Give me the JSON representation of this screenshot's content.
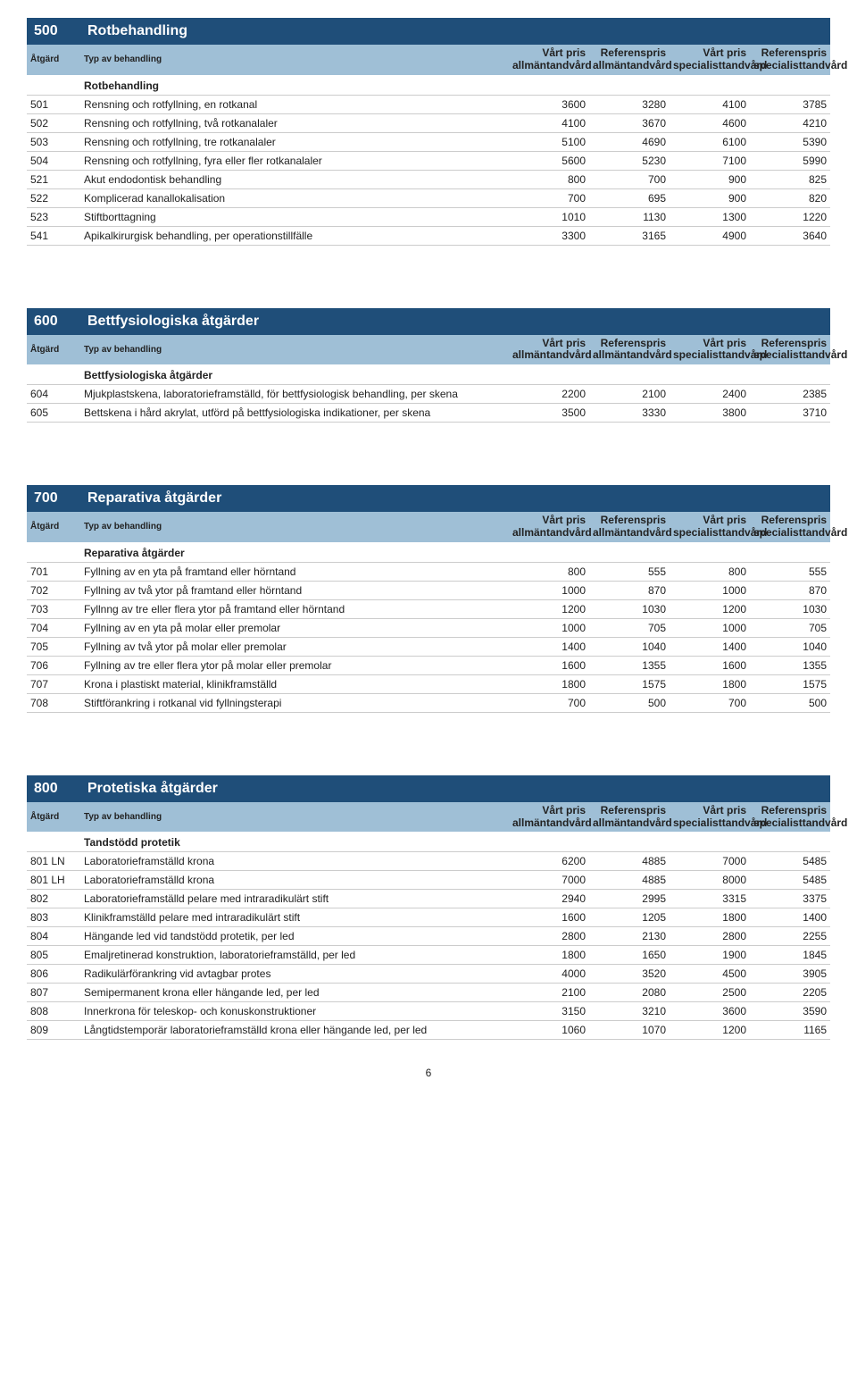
{
  "columns": {
    "atgard": "Åtgärd",
    "typ": "Typ av behandling",
    "c1a": "Vårt pris",
    "c1b": "allmäntandvård",
    "c2a": "Referenspris",
    "c2b": "allmäntandvård",
    "c3a": "Vårt pris",
    "c3b": "specialisttandvård",
    "c4a": "Referenspris",
    "c4b": "specialisttandvård"
  },
  "page_number": "6",
  "sections": [
    {
      "code": "500",
      "title": "Rotbehandling",
      "subhead": "Rotbehandling",
      "rows": [
        {
          "code": "501",
          "desc": "Rensning och rotfyllning, en rotkanal",
          "v": [
            3600,
            3280,
            4100,
            3785
          ]
        },
        {
          "code": "502",
          "desc": "Rensning och rotfyllning, två rotkanalaler",
          "v": [
            4100,
            3670,
            4600,
            4210
          ]
        },
        {
          "code": "503",
          "desc": "Rensning och rotfyllning, tre rotkanalaler",
          "v": [
            5100,
            4690,
            6100,
            5390
          ]
        },
        {
          "code": "504",
          "desc": "Rensning och rotfyllning, fyra eller fler rotkanalaler",
          "v": [
            5600,
            5230,
            7100,
            5990
          ]
        },
        {
          "code": "521",
          "desc": "Akut endodontisk behandling",
          "v": [
            800,
            700,
            900,
            825
          ]
        },
        {
          "code": "522",
          "desc": "Komplicerad kanallokalisation",
          "v": [
            700,
            695,
            900,
            820
          ]
        },
        {
          "code": "523",
          "desc": "Stiftborttagning",
          "v": [
            1010,
            1130,
            1300,
            1220
          ]
        },
        {
          "code": "541",
          "desc": "Apikalkirurgisk behandling, per operationstillfälle",
          "v": [
            3300,
            3165,
            4900,
            3640
          ]
        }
      ]
    },
    {
      "code": "600",
      "title": "Bettfysiologiska åtgärder",
      "subhead": "Bettfysiologiska åtgärder",
      "rows": [
        {
          "code": "604",
          "desc": "Mjukplastskena, laboratorieframställd, för bettfysiologisk behandling, per skena",
          "v": [
            2200,
            2100,
            2400,
            2385
          ]
        },
        {
          "code": "605",
          "desc": "Bettskena i hård akrylat, utförd på bettfysiologiska indikationer, per skena",
          "v": [
            3500,
            3330,
            3800,
            3710
          ]
        }
      ]
    },
    {
      "code": "700",
      "title": "Reparativa åtgärder",
      "subhead": "Reparativa åtgärder",
      "rows": [
        {
          "code": "701",
          "desc": "Fyllning av en yta på framtand eller hörntand",
          "v": [
            800,
            555,
            800,
            555
          ]
        },
        {
          "code": "702",
          "desc": "Fyllning av två ytor på framtand eller hörntand",
          "v": [
            1000,
            870,
            1000,
            870
          ]
        },
        {
          "code": "703",
          "desc": "Fyllnng av tre eller flera ytor på framtand eller hörntand",
          "v": [
            1200,
            1030,
            1200,
            1030
          ]
        },
        {
          "code": "704",
          "desc": "Fyllning av en yta på molar eller premolar",
          "v": [
            1000,
            705,
            1000,
            705
          ]
        },
        {
          "code": "705",
          "desc": "Fyllning av två ytor på molar eller premolar",
          "v": [
            1400,
            1040,
            1400,
            1040
          ]
        },
        {
          "code": "706",
          "desc": "Fyllning av tre eller flera ytor på molar eller premolar",
          "v": [
            1600,
            1355,
            1600,
            1355
          ]
        },
        {
          "code": "707",
          "desc": "Krona i plastiskt material, klinikframställd",
          "v": [
            1800,
            1575,
            1800,
            1575
          ]
        },
        {
          "code": "708",
          "desc": "Stiftförankring i rotkanal vid fyllningsterapi",
          "v": [
            700,
            500,
            700,
            500
          ]
        }
      ]
    },
    {
      "code": "800",
      "title": "Protetiska åtgärder",
      "subhead": "Tandstödd protetik",
      "rows": [
        {
          "code": "801 LN",
          "desc": "Laboratorieframställd krona",
          "v": [
            6200,
            4885,
            7000,
            5485
          ]
        },
        {
          "code": "801 LH",
          "desc": "Laboratorieframställd krona",
          "v": [
            7000,
            4885,
            8000,
            5485
          ]
        },
        {
          "code": "802",
          "desc": "Laboratorieframställd pelare med intraradikulärt stift",
          "v": [
            2940,
            2995,
            3315,
            3375
          ]
        },
        {
          "code": "803",
          "desc": "Klinikframställd pelare med intraradikulärt stift",
          "v": [
            1600,
            1205,
            1800,
            1400
          ]
        },
        {
          "code": "804",
          "desc": "Hängande led vid tandstödd protetik, per led",
          "v": [
            2800,
            2130,
            2800,
            2255
          ]
        },
        {
          "code": "805",
          "desc": "Emaljretinerad konstruktion, laboratorieframställd, per led",
          "v": [
            1800,
            1650,
            1900,
            1845
          ]
        },
        {
          "code": "806",
          "desc": "Radikulärförankring vid avtagbar protes",
          "v": [
            4000,
            3520,
            4500,
            3905
          ]
        },
        {
          "code": "807",
          "desc": "Semipermanent krona eller hängande led, per led",
          "v": [
            2100,
            2080,
            2500,
            2205
          ]
        },
        {
          "code": "808",
          "desc": "Innerkrona för teleskop- och konuskonstruktioner",
          "v": [
            3150,
            3210,
            3600,
            3590
          ]
        },
        {
          "code": "809",
          "desc": "Långtidstemporär laboratorieframställd krona eller hängande led, per led",
          "v": [
            1060,
            1070,
            1200,
            1165
          ]
        }
      ]
    }
  ]
}
